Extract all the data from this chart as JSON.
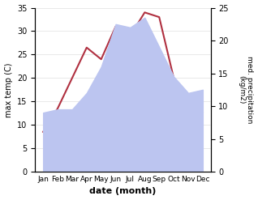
{
  "months": [
    "Jan",
    "Feb",
    "Mar",
    "Apr",
    "May",
    "Jun",
    "Jul",
    "Aug",
    "Sep",
    "Oct",
    "Nov",
    "Dec"
  ],
  "temp": [
    8.5,
    13.5,
    20.0,
    26.5,
    24.0,
    31.0,
    29.0,
    34.0,
    33.0,
    20.0,
    13.0,
    12.5
  ],
  "precip": [
    9.0,
    9.5,
    9.5,
    12.0,
    16.0,
    22.5,
    22.0,
    23.5,
    19.0,
    14.5,
    12.0,
    12.5
  ],
  "temp_color": "#b03040",
  "precip_fill_color": "#bcc5f0",
  "ylabel_left": "max temp (C)",
  "ylabel_right": "med. precipitation\n(kg/m2)",
  "xlabel": "date (month)",
  "ylim_left": [
    0,
    35
  ],
  "ylim_right": [
    0,
    25
  ],
  "yticks_left": [
    0,
    5,
    10,
    15,
    20,
    25,
    30,
    35
  ],
  "yticks_right": [
    0,
    5,
    10,
    15,
    20,
    25
  ],
  "background_color": "#ffffff"
}
